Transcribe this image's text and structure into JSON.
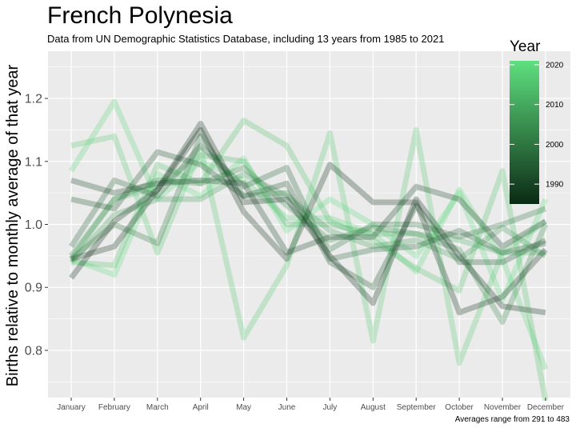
{
  "title": "French Polynesia",
  "subtitle": "Data from UN Demographic Statistics Database, including 13 years from 1985 to 2021",
  "caption": "Averages range from 291 to 483",
  "colors": {
    "panel_background": "#ebebeb",
    "gridline": "#ffffff",
    "year_low": "#0b2a14",
    "year_high": "#5fe07f"
  },
  "chart_data": {
    "type": "line",
    "ylabel": "Births relative to monthly average of that year",
    "categories": [
      "January",
      "February",
      "March",
      "April",
      "May",
      "June",
      "July",
      "August",
      "September",
      "October",
      "November",
      "December"
    ],
    "ylim": [
      0.725,
      1.275
    ],
    "yticks": [
      "0.8",
      "0.9",
      "1.0",
      "1.1",
      "1.2"
    ],
    "grid": true,
    "legend": {
      "title": "Year",
      "position": "right",
      "range": [
        1985,
        2021
      ],
      "labels": [
        "1990",
        "2000",
        "2010",
        "2020"
      ]
    },
    "series": [
      {
        "year": 1985,
        "values": [
          0.915,
          1.005,
          1.055,
          1.16,
          1.035,
          1.04,
          0.95,
          0.875,
          1.04,
          0.95,
          0.87,
          0.86
        ]
      },
      {
        "year": 1987,
        "values": [
          0.945,
          0.965,
          1.055,
          1.15,
          1.02,
          0.945,
          1.095,
          1.035,
          1.035,
          0.86,
          0.885,
          0.96
        ]
      },
      {
        "year": 1990,
        "values": [
          1.07,
          1.05,
          1.065,
          1.07,
          1.065,
          0.955,
          0.98,
          0.98,
          1.06,
          1.04,
          0.965,
          1.005
        ]
      },
      {
        "year": 1993,
        "values": [
          1.04,
          1.025,
          1.115,
          1.095,
          1.045,
          1.065,
          0.94,
          0.9,
          1.03,
          0.94,
          0.94,
          0.975
        ]
      },
      {
        "year": 1996,
        "values": [
          0.965,
          1.07,
          1.045,
          1.125,
          1.06,
          1.09,
          0.945,
          0.96,
          0.965,
          0.99,
          0.955,
          0.97
        ]
      },
      {
        "year": 2000,
        "values": [
          0.945,
          1.0,
          0.97,
          1.14,
          1.045,
          1.05,
          0.96,
          1.0,
          1.0,
          0.98,
          1.0,
          1.025
        ]
      },
      {
        "year": 2004,
        "values": [
          0.95,
          1.04,
          1.07,
          1.065,
          1.09,
          1.03,
          0.975,
          0.995,
          0.985,
          0.96,
          0.845,
          1.0
        ]
      },
      {
        "year": 2008,
        "values": [
          0.94,
          1.015,
          1.04,
          1.04,
          1.08,
          1.045,
          0.99,
          0.965,
          0.975,
          0.945,
          0.995,
          0.95
        ]
      },
      {
        "year": 2012,
        "values": [
          0.945,
          1.04,
          1.06,
          1.11,
          1.1,
          1.0,
          1.0,
          0.985,
          0.985,
          0.975,
          0.955,
          0.955
        ]
      },
      {
        "year": 2015,
        "values": [
          0.94,
          0.935,
          1.095,
          1.065,
          1.165,
          1.125,
          1.005,
          0.975,
          0.93,
          0.895,
          1.085,
          0.72
        ]
      },
      {
        "year": 2017,
        "values": [
          1.125,
          1.14,
          0.955,
          1.12,
          0.82,
          0.935,
          1.145,
          0.815,
          1.15,
          0.78,
          0.955,
          1.005
        ]
      },
      {
        "year": 2019,
        "values": [
          1.085,
          1.195,
          1.04,
          1.1,
          1.07,
          1.01,
          1.01,
          0.985,
          0.925,
          1.055,
          0.945,
          0.77
        ]
      },
      {
        "year": 2021,
        "values": [
          0.945,
          0.92,
          1.08,
          1.045,
          1.105,
          0.99,
          1.04,
          1.0,
          0.95,
          1.05,
          0.88,
          1.04
        ]
      }
    ]
  }
}
